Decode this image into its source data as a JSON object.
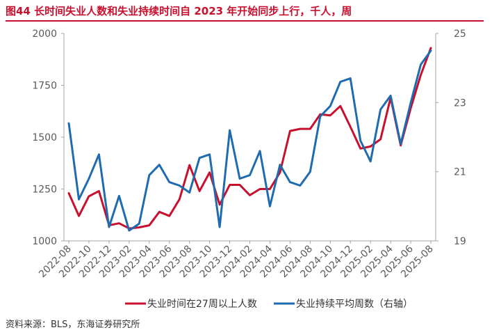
{
  "header": {
    "title": "图44  长时间失业人数和失业持续时间自 2023 年开始同步上行，千人，周"
  },
  "footer": {
    "source": "资料来源：BLS，东海证券研究所"
  },
  "colors": {
    "series_a": "#c8102e",
    "series_b": "#1f6bb0",
    "title": "#c8102e",
    "axis": "#a6a6a6",
    "text": "#595959"
  },
  "chart_data": {
    "type": "line",
    "title": "",
    "xlabel": "",
    "ylabel": "",
    "y_left": {
      "range": [
        1000,
        2000
      ],
      "ticks": [
        1000,
        1250,
        1500,
        1750,
        2000
      ]
    },
    "y_right": {
      "range": [
        19,
        25
      ],
      "ticks": [
        19,
        21,
        23,
        25
      ],
      "label": ""
    },
    "grid": false,
    "legend_position": "bottom",
    "x": [
      "2022-08",
      "2022-09",
      "2022-10",
      "2022-11",
      "2022-12",
      "2023-01",
      "2023-02",
      "2023-03",
      "2023-04",
      "2023-05",
      "2023-06",
      "2023-07",
      "2023-08",
      "2023-09",
      "2023-10",
      "2023-11",
      "2023-12",
      "2024-01",
      "2024-02",
      "2024-03",
      "2024-04",
      "2024-05",
      "2024-06",
      "2024-07",
      "2024-08",
      "2024-09",
      "2024-10",
      "2024-11",
      "2024-12",
      "2025-01",
      "2025-02",
      "2025-03",
      "2025-04",
      "2025-05",
      "2025-06",
      "2025-07",
      "2025-08"
    ],
    "x_tick_labels": [
      "2022-08",
      "2022-10",
      "2022-12",
      "2023-02",
      "2023-04",
      "2023-06",
      "2023-08",
      "2023-10",
      "2023-12",
      "2024-02",
      "2024-04",
      "2024-06",
      "2024-08",
      "2024-10",
      "2024-12",
      "2025-02",
      "2025-04",
      "2025-06",
      "2025-08"
    ],
    "series": [
      {
        "name": "失业时间在27周以上人数",
        "axis": "left",
        "values": [
          1230,
          1120,
          1215,
          1240,
          1075,
          1085,
          1060,
          1065,
          1075,
          1140,
          1120,
          1200,
          1365,
          1240,
          1330,
          1175,
          1270,
          1270,
          1220,
          1250,
          1250,
          1330,
          1530,
          1540,
          1540,
          1610,
          1605,
          1650,
          1550,
          1445,
          1455,
          1490,
          1690,
          1460,
          1640,
          1800,
          1930
        ]
      },
      {
        "name": "失业持续平均周数（右轴）",
        "axis": "right",
        "values": [
          22.4,
          20.2,
          20.8,
          21.5,
          19.4,
          20.3,
          19.3,
          19.5,
          20.9,
          21.2,
          20.7,
          20.6,
          20.4,
          21.4,
          21.5,
          19.4,
          22.2,
          20.8,
          20.9,
          21.6,
          20.0,
          21.2,
          20.7,
          20.6,
          21.0,
          22.6,
          22.9,
          23.6,
          23.7,
          21.9,
          21.3,
          22.8,
          23.2,
          21.8,
          23.0,
          24.1,
          24.5
        ]
      }
    ]
  }
}
